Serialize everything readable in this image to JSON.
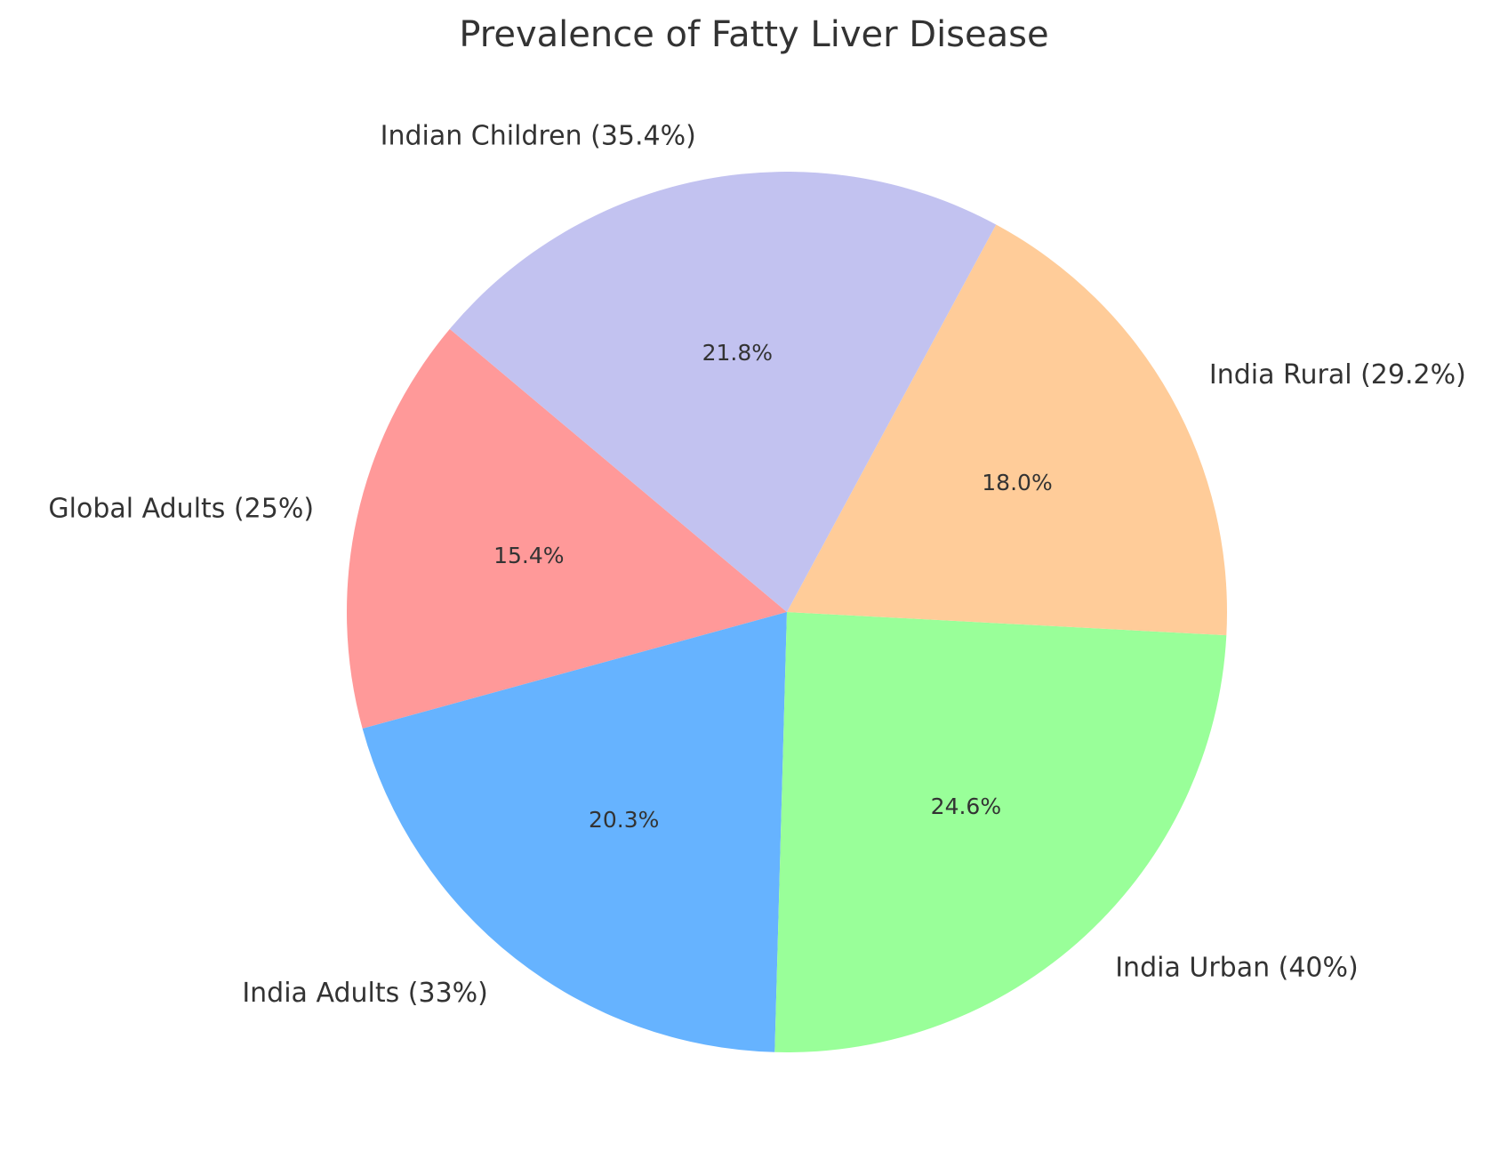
{
  "chart_data": {
    "type": "pie",
    "title": "Prevalence of Fatty Liver Disease",
    "slices": [
      {
        "label": "Global Adults (25%)",
        "value": 25,
        "percent_label": "15.4%",
        "color": "#ff9999"
      },
      {
        "label": "India Adults (33%)",
        "value": 33,
        "percent_label": "20.3%",
        "color": "#66b3ff"
      },
      {
        "label": "India Urban (40%)",
        "value": 40,
        "percent_label": "24.6%",
        "color": "#99ff99"
      },
      {
        "label": "India Rural (29.2%)",
        "value": 29.2,
        "percent_label": "18.0%",
        "color": "#ffcc99"
      },
      {
        "label": "Indian Children (35.4%)",
        "value": 35.4,
        "percent_label": "21.8%",
        "color": "#c2c2f0"
      }
    ],
    "start_angle_deg": 140,
    "direction": "counterclockwise"
  }
}
